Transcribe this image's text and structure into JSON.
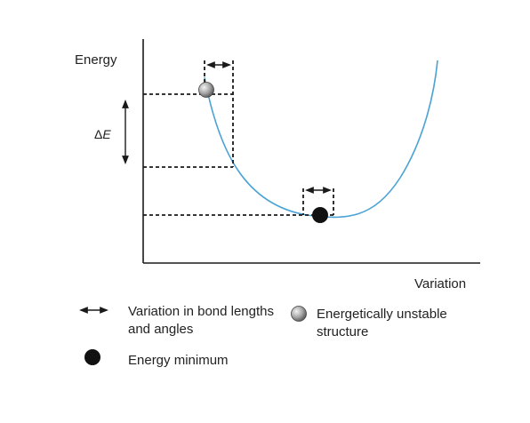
{
  "y_axis_label": "Energy",
  "x_axis_label": "Variation",
  "delta_label": {
    "prefix": "Δ",
    "symbol": "E"
  },
  "legend": {
    "arrow_label": "Variation in bond lengths and angles",
    "unstable_label": "Energetically unstable structure",
    "minimum_label": "Energy minimum"
  },
  "colors": {
    "curve": "#4aa3d4",
    "axis": "#1a1a1a",
    "minimum_dot": "#111111",
    "unstable_ball": "#9a9a9a"
  },
  "icons": {
    "double_arrow": "double-headed-arrow-icon",
    "unstable": "gray-sphere-icon",
    "minimum": "black-dot-icon"
  }
}
